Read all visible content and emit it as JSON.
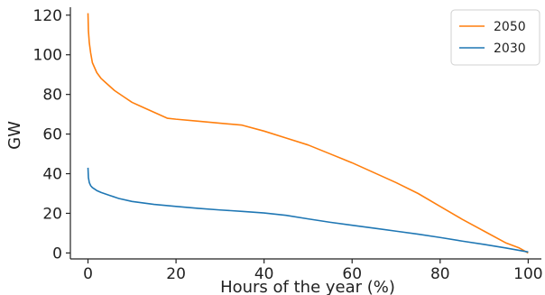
{
  "chart_data": {
    "type": "line",
    "xlabel": "Hours of the year (%)",
    "ylabel": "GW",
    "xlim": [
      -4,
      103
    ],
    "ylim": [
      -3,
      124
    ],
    "x_ticks": [
      0,
      20,
      40,
      60,
      80,
      100
    ],
    "y_ticks": [
      0,
      20,
      40,
      60,
      80,
      100,
      120
    ],
    "x_tick_labels": [
      "0",
      "20",
      "40",
      "60",
      "80",
      "100"
    ],
    "y_tick_labels": [
      "0",
      "20",
      "40",
      "60",
      "80",
      "100",
      "120"
    ],
    "grid": false,
    "legend_position": "top-right",
    "series": [
      {
        "name": "2050",
        "color": "#ff7f0e",
        "x": [
          0,
          0.1,
          0.3,
          0.6,
          1,
          2,
          3,
          4,
          6,
          8,
          10,
          12,
          14,
          16,
          18,
          20,
          25,
          30,
          35,
          40,
          45,
          50,
          55,
          60,
          65,
          70,
          75,
          80,
          85,
          90,
          95,
          98,
          100
        ],
        "y": [
          121,
          112,
          106,
          101,
          96,
          91,
          88,
          86,
          82,
          79,
          76,
          74,
          72,
          70,
          68,
          67.5,
          66.5,
          65.5,
          64.5,
          61.5,
          58,
          54.5,
          50,
          45.5,
          40.5,
          35.5,
          30,
          23.5,
          17,
          11,
          5,
          2.5,
          0
        ]
      },
      {
        "name": "2030",
        "color": "#1f77b4",
        "x": [
          0,
          0.1,
          0.3,
          0.6,
          1,
          2,
          3,
          5,
          7,
          10,
          15,
          20,
          25,
          30,
          35,
          40,
          45,
          50,
          55,
          60,
          65,
          70,
          75,
          80,
          85,
          90,
          95,
          100
        ],
        "y": [
          43,
          38,
          35.5,
          34,
          33,
          31.5,
          30.5,
          29,
          27.5,
          26,
          24.5,
          23.5,
          22.5,
          21.7,
          21,
          20.2,
          19,
          17.2,
          15.5,
          14,
          12.5,
          11,
          9.5,
          7.8,
          6,
          4.3,
          2.5,
          0.5
        ]
      }
    ]
  }
}
